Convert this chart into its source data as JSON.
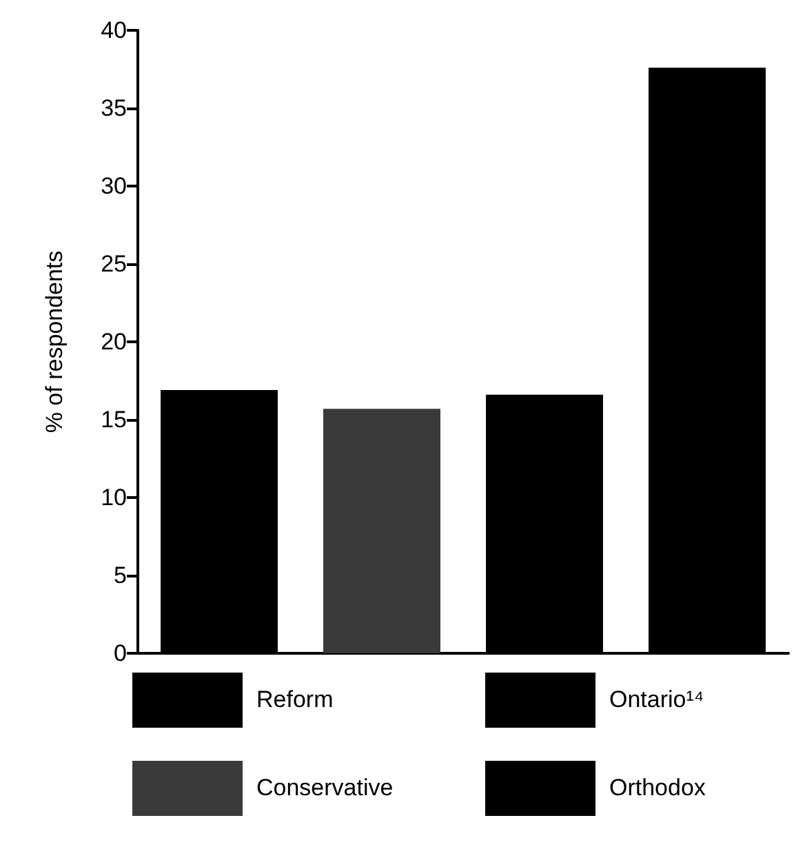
{
  "chart_data": {
    "type": "bar",
    "ylabel": "% of respondents",
    "categories": [
      null,
      null,
      null,
      null
    ],
    "series": [
      {
        "name": "Reform",
        "color": "#000000",
        "values": [
          16.9,
          null,
          null,
          null
        ]
      },
      {
        "name": "Conservative",
        "color": "#3a3a3a",
        "values": [
          null,
          15.7,
          null,
          null
        ]
      },
      {
        "name": "Ontario¹⁴",
        "color": "#000000",
        "values": [
          null,
          null,
          16.6,
          null
        ]
      },
      {
        "name": "Orthodox",
        "color": "#000000",
        "values": [
          null,
          null,
          null,
          37.6
        ]
      }
    ],
    "ylim": [
      0,
      40
    ],
    "yticks": [
      0,
      5,
      10,
      15,
      20,
      25,
      30,
      35,
      40
    ],
    "grid": false,
    "legend": "bottom",
    "tick_labels": "y"
  }
}
